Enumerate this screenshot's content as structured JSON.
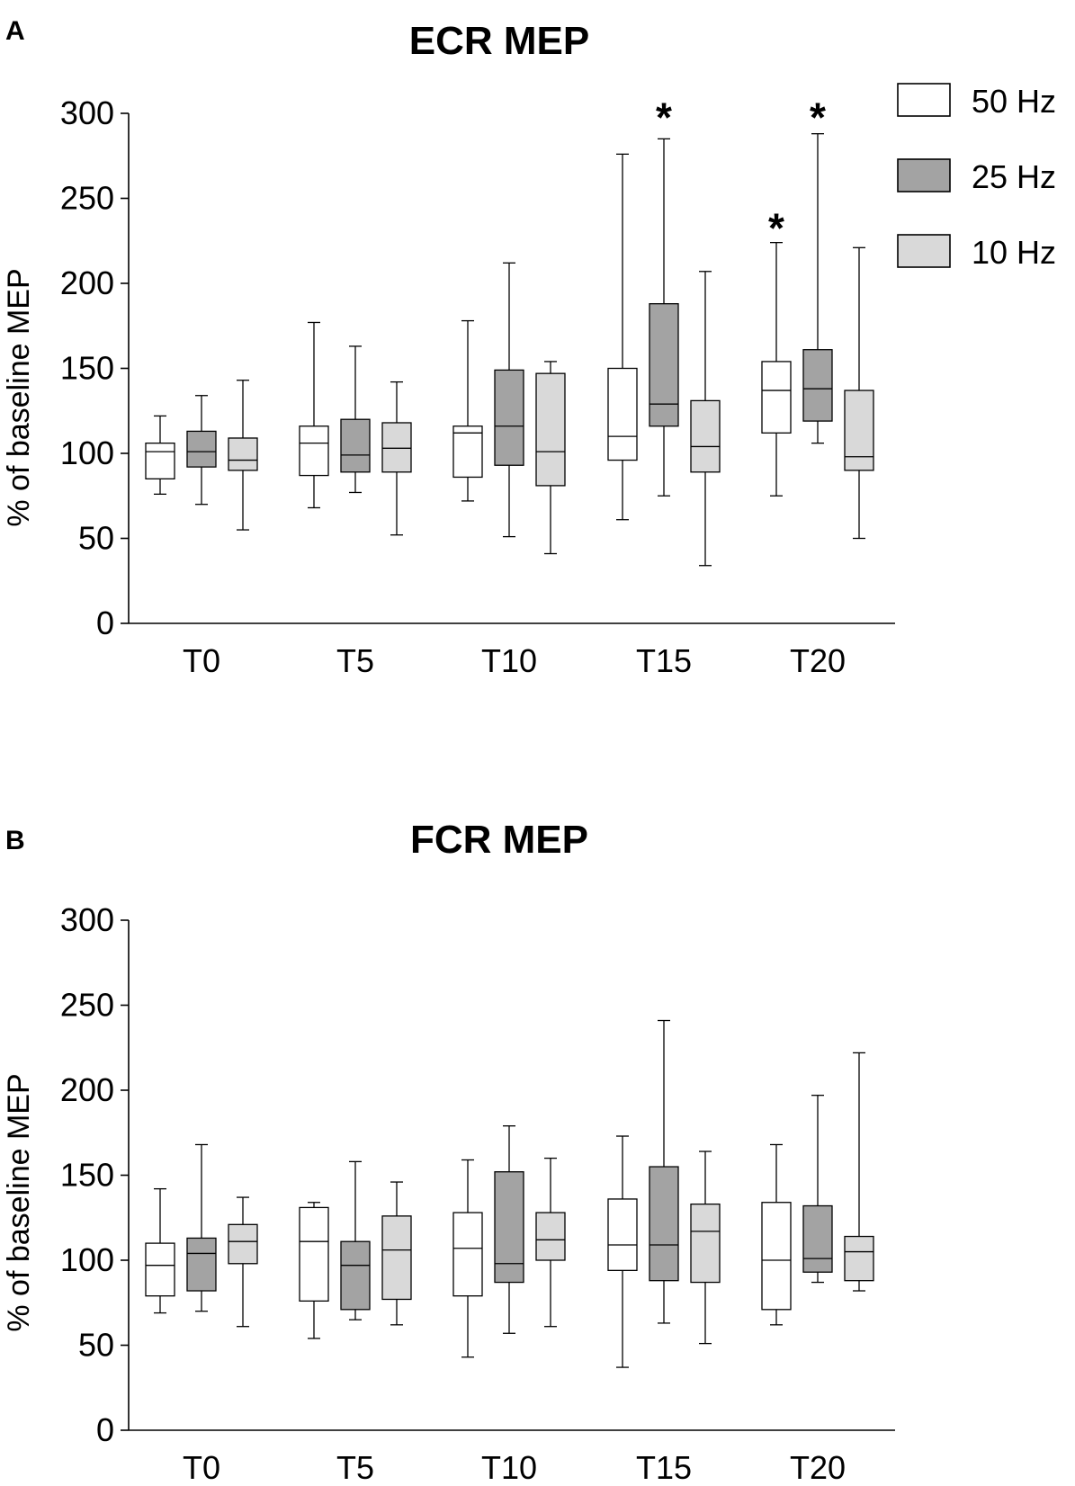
{
  "chart_data": [
    {
      "type": "box",
      "panel": "A",
      "title": "ECR MEP",
      "xlabel": "",
      "ylabel": "% of baseline MEP",
      "ylim": [
        0,
        300
      ],
      "yticks": [
        0,
        50,
        100,
        150,
        200,
        250,
        300
      ],
      "categories": [
        "T0",
        "T5",
        "T10",
        "T15",
        "T20"
      ],
      "legend": {
        "placement": "top-right"
      },
      "series": [
        {
          "name": "50 Hz",
          "color": "#ffffff",
          "boxes": [
            {
              "min": 76,
              "q1": 85,
              "median": 101,
              "q3": 106,
              "max": 122
            },
            {
              "min": 68,
              "q1": 87,
              "median": 106,
              "q3": 116,
              "max": 177
            },
            {
              "min": 72,
              "q1": 86,
              "median": 112,
              "q3": 116,
              "max": 178
            },
            {
              "min": 61,
              "q1": 96,
              "median": 110,
              "q3": 150,
              "max": 276
            },
            {
              "min": 75,
              "q1": 112,
              "median": 137,
              "q3": 154,
              "max": 224
            }
          ]
        },
        {
          "name": "25 Hz",
          "color": "#a3a3a3",
          "boxes": [
            {
              "min": 70,
              "q1": 92,
              "median": 101,
              "q3": 113,
              "max": 134
            },
            {
              "min": 77,
              "q1": 89,
              "median": 99,
              "q3": 120,
              "max": 163
            },
            {
              "min": 51,
              "q1": 93,
              "median": 116,
              "q3": 149,
              "max": 212
            },
            {
              "min": 75,
              "q1": 116,
              "median": 129,
              "q3": 188,
              "max": 285
            },
            {
              "min": 106,
              "q1": 119,
              "median": 138,
              "q3": 161,
              "max": 288
            }
          ]
        },
        {
          "name": "10 Hz",
          "color": "#d9d9d9",
          "boxes": [
            {
              "min": 55,
              "q1": 90,
              "median": 96,
              "q3": 109,
              "max": 143
            },
            {
              "min": 52,
              "q1": 89,
              "median": 103,
              "q3": 118,
              "max": 142
            },
            {
              "min": 41,
              "q1": 81,
              "median": 101,
              "q3": 147,
              "max": 154
            },
            {
              "min": 34,
              "q1": 89,
              "median": 104,
              "q3": 131,
              "max": 207
            },
            {
              "min": 50,
              "q1": 90,
              "median": 98,
              "q3": 137,
              "max": 221
            }
          ]
        }
      ],
      "annotations": [
        {
          "text": "*",
          "category": "T15",
          "series": "25 Hz",
          "y": 305
        },
        {
          "text": "*",
          "category": "T20",
          "series": "50 Hz",
          "y": 240
        },
        {
          "text": "*",
          "category": "T20",
          "series": "25 Hz",
          "y": 305
        }
      ]
    },
    {
      "type": "box",
      "panel": "B",
      "title": "FCR MEP",
      "xlabel": "",
      "ylabel": "% of baseline MEP",
      "ylim": [
        0,
        300
      ],
      "yticks": [
        0,
        50,
        100,
        150,
        200,
        250,
        300
      ],
      "categories": [
        "T0",
        "T5",
        "T10",
        "T15",
        "T20"
      ],
      "series": [
        {
          "name": "50 Hz",
          "color": "#ffffff",
          "boxes": [
            {
              "min": 69,
              "q1": 79,
              "median": 97,
              "q3": 110,
              "max": 142
            },
            {
              "min": 54,
              "q1": 76,
              "median": 111,
              "q3": 131,
              "max": 134
            },
            {
              "min": 43,
              "q1": 79,
              "median": 107,
              "q3": 128,
              "max": 159
            },
            {
              "min": 37,
              "q1": 94,
              "median": 109,
              "q3": 136,
              "max": 173
            },
            {
              "min": 62,
              "q1": 71,
              "median": 100,
              "q3": 134,
              "max": 168
            }
          ]
        },
        {
          "name": "25 Hz",
          "color": "#a3a3a3",
          "boxes": [
            {
              "min": 70,
              "q1": 82,
              "median": 104,
              "q3": 113,
              "max": 168
            },
            {
              "min": 65,
              "q1": 71,
              "median": 97,
              "q3": 111,
              "max": 158
            },
            {
              "min": 57,
              "q1": 87,
              "median": 98,
              "q3": 152,
              "max": 179
            },
            {
              "min": 63,
              "q1": 88,
              "median": 109,
              "q3": 155,
              "max": 241
            },
            {
              "min": 87,
              "q1": 93,
              "median": 101,
              "q3": 132,
              "max": 197
            }
          ]
        },
        {
          "name": "10 Hz",
          "color": "#d9d9d9",
          "boxes": [
            {
              "min": 61,
              "q1": 98,
              "median": 111,
              "q3": 121,
              "max": 137
            },
            {
              "min": 62,
              "q1": 77,
              "median": 106,
              "q3": 126,
              "max": 146
            },
            {
              "min": 61,
              "q1": 100,
              "median": 112,
              "q3": 128,
              "max": 160
            },
            {
              "min": 51,
              "q1": 87,
              "median": 117,
              "q3": 133,
              "max": 164
            },
            {
              "min": 82,
              "q1": 88,
              "median": 105,
              "q3": 114,
              "max": 222
            }
          ]
        }
      ],
      "annotations": []
    }
  ]
}
